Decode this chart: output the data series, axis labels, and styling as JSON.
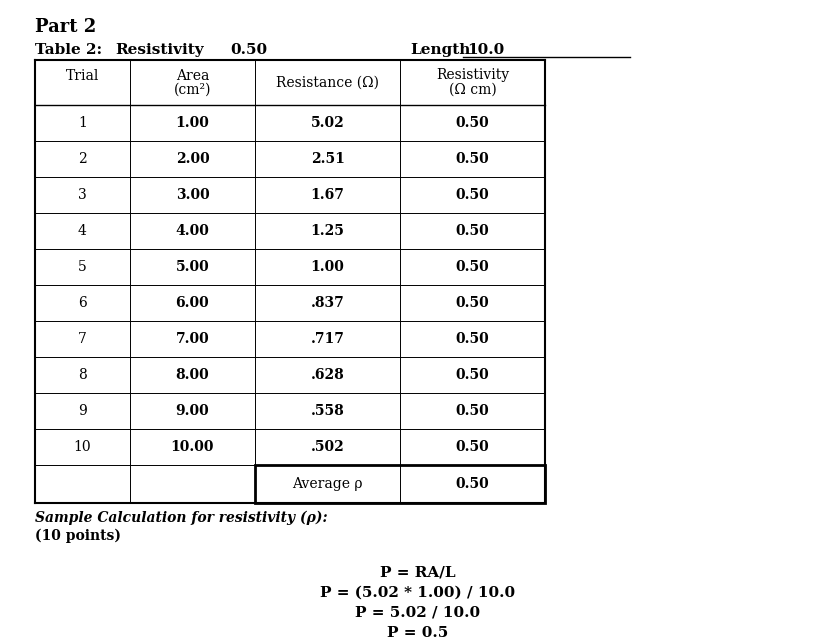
{
  "title": "Part 2",
  "table_label": "Table 2:",
  "resistivity_label": "Resistivity",
  "resistivity_value": "0.50",
  "length_label": "Length",
  "length_value": "10.0",
  "col_headers_line1": [
    "Trial",
    "Area",
    "Resistance (Ω)",
    "Resistivity"
  ],
  "col_headers_line2": [
    "",
    "(cm²)",
    "",
    "(Ω cm)"
  ],
  "trials": [
    "1",
    "2",
    "3",
    "4",
    "5",
    "6",
    "7",
    "8",
    "9",
    "10"
  ],
  "areas": [
    "1.00",
    "2.00",
    "3.00",
    "4.00",
    "5.00",
    "6.00",
    "7.00",
    "8.00",
    "9.00",
    "10.00"
  ],
  "resistances": [
    "5.02",
    "2.51",
    "1.67",
    "1.25",
    "1.00",
    ".837",
    ".717",
    ".628",
    ".558",
    ".502"
  ],
  "resistivities": [
    "0.50",
    "0.50",
    "0.50",
    "0.50",
    "0.50",
    "0.50",
    "0.50",
    "0.50",
    "0.50",
    "0.50"
  ],
  "avg_label": "Average ρ",
  "avg_value": "0.50",
  "sample_calc_italic": "Sample Calculation for resistivity (ρ):",
  "sample_calc_bold": "(10 points)",
  "formula_lines": [
    "P = RA/L",
    "P = (5.02 * 1.00) / 10.0",
    "P = 5.02 / 10.0",
    "P = 0.5"
  ],
  "bg_color": "#ffffff",
  "text_color": "#000000",
  "font_family": "serif"
}
